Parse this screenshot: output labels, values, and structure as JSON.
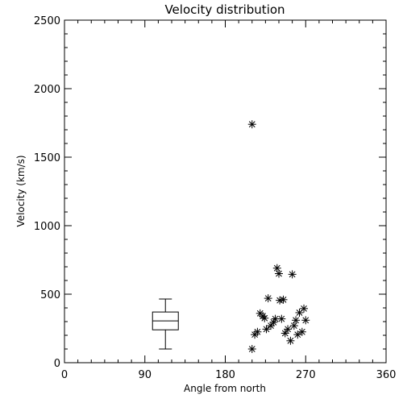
{
  "chart_data": {
    "type": "scatter",
    "title": "Velocity distribution",
    "xlabel": "Angle from north",
    "ylabel": "Velocity (km/s)",
    "xlim": [
      0,
      360
    ],
    "ylim": [
      0,
      2500
    ],
    "xticks": [
      "0",
      "90",
      "180",
      "270",
      "360"
    ],
    "yticks": [
      "0",
      "500",
      "1000",
      "1500",
      "2000",
      "2500"
    ],
    "grid": false,
    "marker": "asterisk",
    "boxplot": {
      "x": 113,
      "min": 100,
      "q1": 240,
      "median": 305,
      "q3": 370,
      "max": 465
    },
    "points": [
      {
        "x": 210,
        "y": 1740
      },
      {
        "x": 210,
        "y": 100
      },
      {
        "x": 213,
        "y": 205
      },
      {
        "x": 216,
        "y": 225
      },
      {
        "x": 219,
        "y": 360
      },
      {
        "x": 222,
        "y": 340
      },
      {
        "x": 224,
        "y": 325
      },
      {
        "x": 226,
        "y": 245
      },
      {
        "x": 228,
        "y": 470
      },
      {
        "x": 231,
        "y": 270
      },
      {
        "x": 234,
        "y": 295
      },
      {
        "x": 236,
        "y": 320
      },
      {
        "x": 238,
        "y": 690
      },
      {
        "x": 240,
        "y": 650
      },
      {
        "x": 241,
        "y": 455
      },
      {
        "x": 243,
        "y": 320
      },
      {
        "x": 245,
        "y": 460
      },
      {
        "x": 247,
        "y": 215
      },
      {
        "x": 250,
        "y": 245
      },
      {
        "x": 253,
        "y": 160
      },
      {
        "x": 255,
        "y": 645
      },
      {
        "x": 257,
        "y": 270
      },
      {
        "x": 259,
        "y": 310
      },
      {
        "x": 261,
        "y": 205
      },
      {
        "x": 263,
        "y": 365
      },
      {
        "x": 266,
        "y": 225
      },
      {
        "x": 268,
        "y": 395
      },
      {
        "x": 270,
        "y": 310
      }
    ]
  }
}
